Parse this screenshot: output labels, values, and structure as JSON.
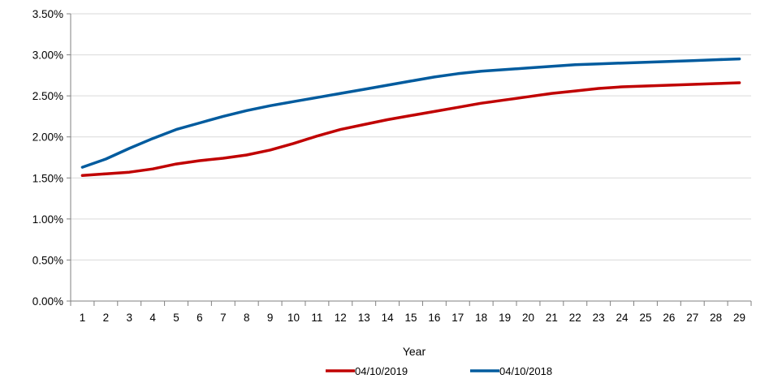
{
  "chart_data": {
    "type": "line",
    "xlabel": "Year",
    "ylabel": "",
    "ylim": [
      0,
      3.5
    ],
    "y_ticks": [
      "0.00%",
      "0.50%",
      "1.00%",
      "1.50%",
      "2.00%",
      "2.50%",
      "3.00%",
      "3.50%"
    ],
    "y_tick_values": [
      0,
      0.5,
      1.0,
      1.5,
      2.0,
      2.5,
      3.0,
      3.5
    ],
    "grid": "horizontal",
    "legend_position": "bottom",
    "x": [
      1,
      2,
      3,
      4,
      5,
      6,
      7,
      8,
      9,
      10,
      11,
      12,
      13,
      14,
      15,
      16,
      17,
      18,
      19,
      20,
      21,
      22,
      23,
      24,
      25,
      26,
      27,
      28,
      29
    ],
    "series": [
      {
        "name": "04/10/2019",
        "color": "#c00000",
        "values": [
          1.53,
          1.55,
          1.57,
          1.61,
          1.67,
          1.71,
          1.74,
          1.78,
          1.84,
          1.92,
          2.01,
          2.09,
          2.15,
          2.21,
          2.26,
          2.31,
          2.36,
          2.41,
          2.45,
          2.49,
          2.53,
          2.56,
          2.59,
          2.61,
          2.62,
          2.63,
          2.64,
          2.65,
          2.66
        ]
      },
      {
        "name": "04/10/2018",
        "color": "#005b9e",
        "values": [
          1.63,
          1.73,
          1.86,
          1.98,
          2.09,
          2.17,
          2.25,
          2.32,
          2.38,
          2.43,
          2.48,
          2.53,
          2.58,
          2.63,
          2.68,
          2.73,
          2.77,
          2.8,
          2.82,
          2.84,
          2.86,
          2.88,
          2.89,
          2.9,
          2.91,
          2.92,
          2.93,
          2.94,
          2.95
        ]
      }
    ]
  }
}
